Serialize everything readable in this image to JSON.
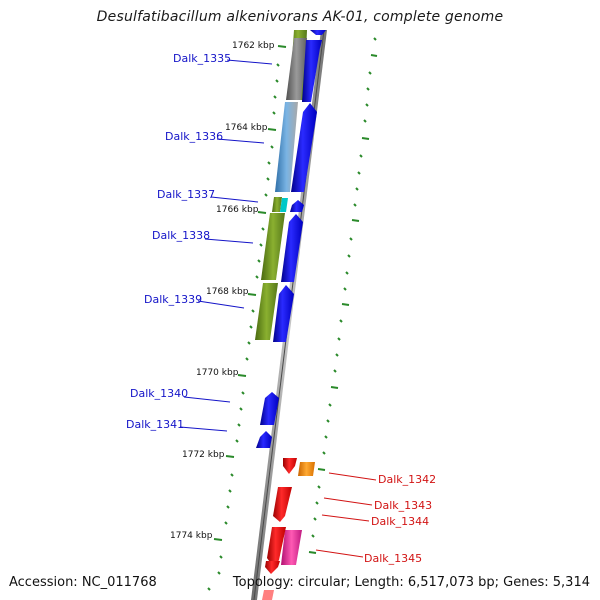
{
  "title": "Desulfatibacillum alkenivorans AK-01, complete genome",
  "footer": {
    "accession": "Accession: NC_011768",
    "summary": "Topology: circular; Length: 6,517,073 bp; Genes: 5,314"
  },
  "scale": [
    "1762 kbp",
    "1764 kbp",
    "1766 kbp",
    "1768 kbp",
    "1770 kbp",
    "1772 kbp",
    "1774 kbp"
  ],
  "genes_forward_strand": [
    "Dalk_1335",
    "Dalk_1336",
    "Dalk_1337",
    "Dalk_1338",
    "Dalk_1339",
    "Dalk_1340",
    "Dalk_1341"
  ],
  "genes_reverse_strand": [
    "Dalk_1342",
    "Dalk_1343",
    "Dalk_1344",
    "Dalk_1345"
  ],
  "colors": {
    "forward_gene": "#0000ff",
    "reverse_gene": "#ff0000",
    "label_forward": "#1414c8",
    "label_reverse": "#d21414",
    "gc_dash": "#2a8a2a",
    "olive_feature": "#6b8e23",
    "blue_feature": "#4682b4",
    "gray_feature": "#808080",
    "cyan_feature": "#00c8c8",
    "orange_feature": "#ff8c00",
    "magenta_feature": "#e0309a"
  }
}
